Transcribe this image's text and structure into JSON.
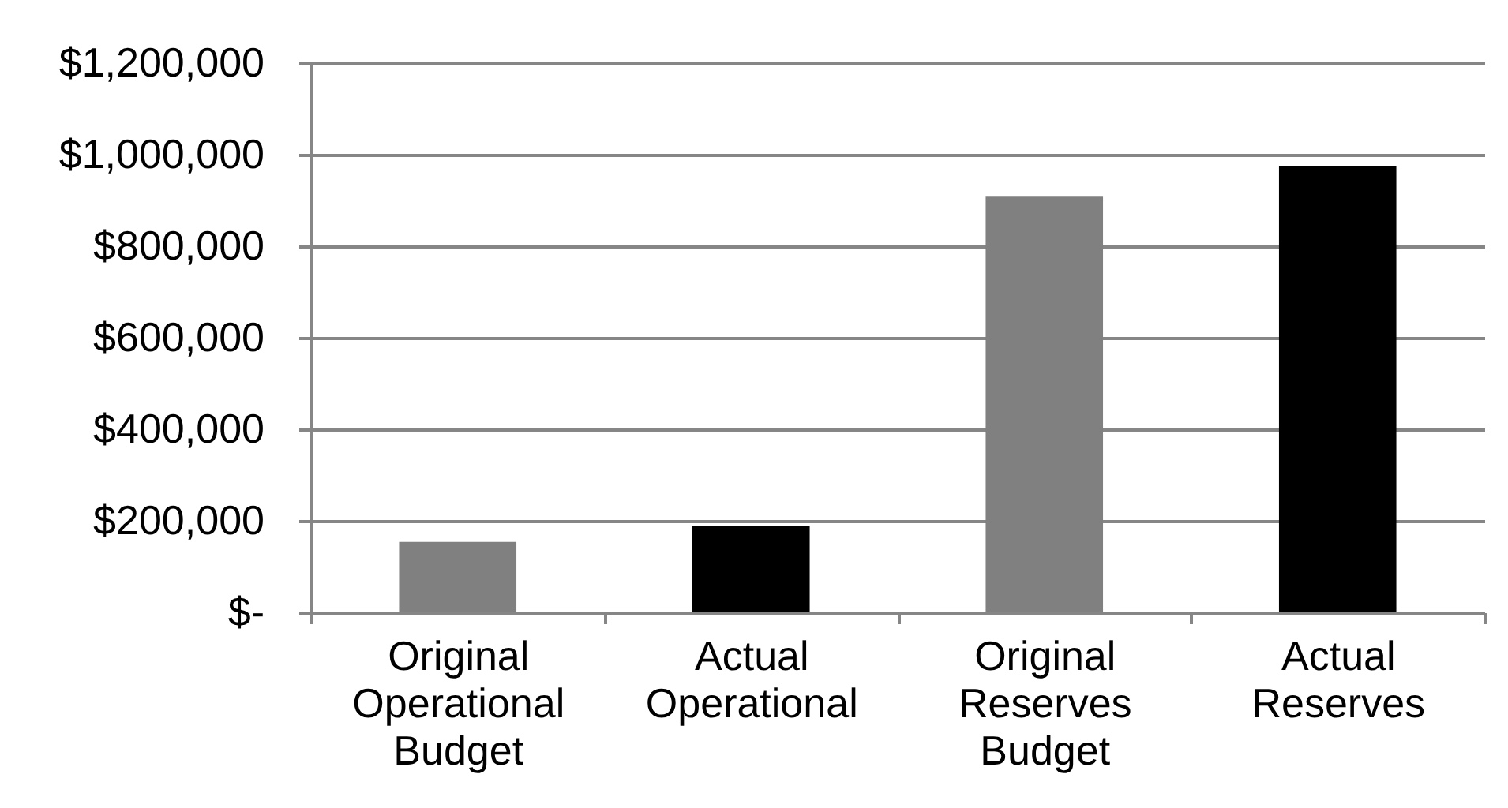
{
  "chart_data": {
    "type": "bar",
    "categories": [
      "Original Operational Budget",
      "Actual Operational",
      "Original Reserves Budget",
      "Actual Reserves"
    ],
    "values": [
      154000,
      188000,
      908000,
      976000
    ],
    "colors": [
      "#808080",
      "#000000",
      "#808080",
      "#000000"
    ],
    "ylim": [
      0,
      1200000
    ],
    "yticks": [
      {
        "value": 0,
        "label": "$-"
      },
      {
        "value": 200000,
        "label": "$200,000"
      },
      {
        "value": 400000,
        "label": "$400,000"
      },
      {
        "value": 600000,
        "label": "$600,000"
      },
      {
        "value": 800000,
        "label": "$800,000"
      },
      {
        "value": 1000000,
        "label": "$1,000,000"
      },
      {
        "value": 1200000,
        "label": "$1,200,000"
      }
    ],
    "grid": "y"
  }
}
